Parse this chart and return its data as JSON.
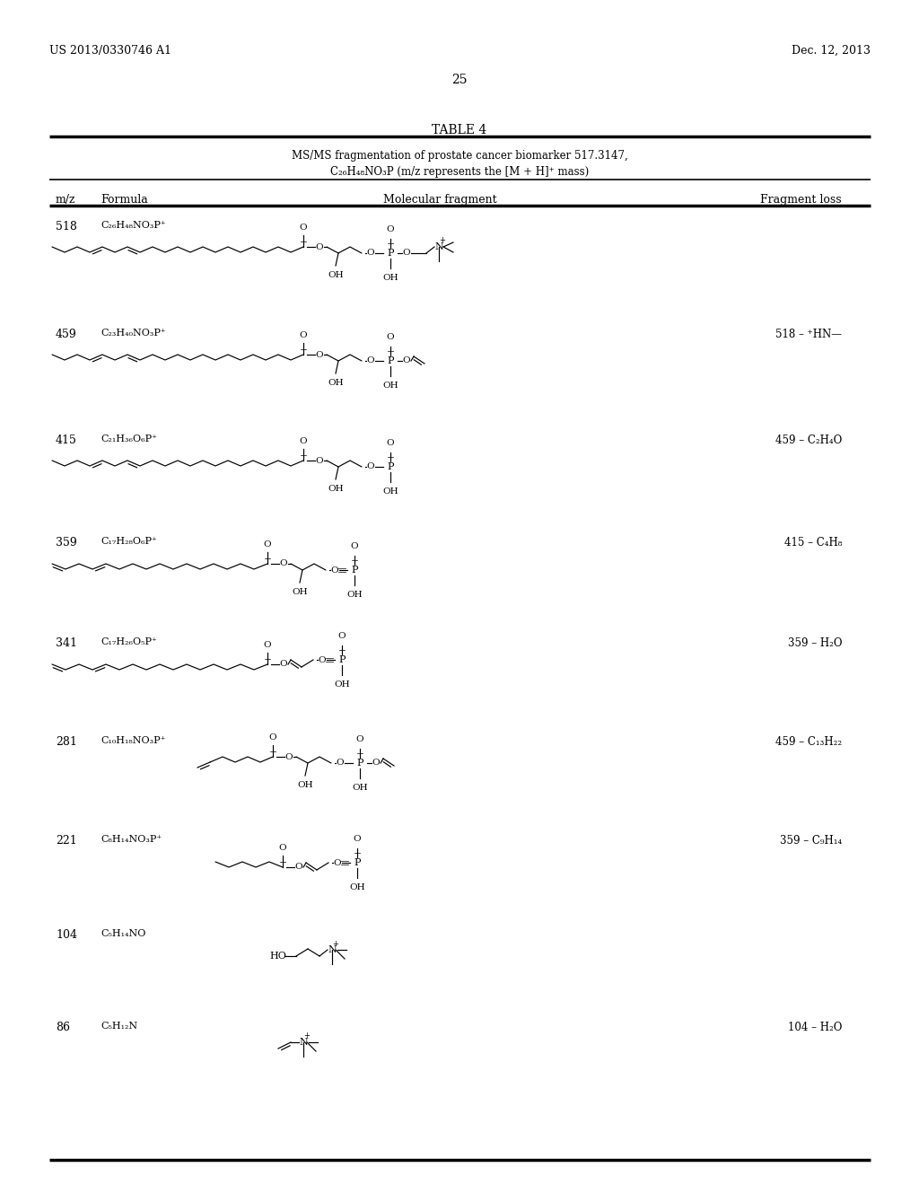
{
  "background_color": "#ffffff",
  "header_left": "US 2013/0330746 A1",
  "header_right": "Dec. 12, 2013",
  "page_number": "25",
  "table_title": "TABLE 4",
  "subtitle1": "MS/MS fragmentation of prostate cancer biomarker 517.3147,",
  "subtitle2": "C₂₆H₄₈NO₃P (m/z represents the [M + H]⁺ mass)",
  "col1": "m/z",
  "col2": "Formula",
  "col3": "Molecular fragment",
  "col4": "Fragment loss",
  "rows": [
    {
      "mz": "518",
      "formula": "C₂₆H₄₈NO₃P⁺",
      "fl": ""
    },
    {
      "mz": "459",
      "formula": "C₂₃H₄₀NO₃P⁺",
      "fl": "518 – ⁺HN—"
    },
    {
      "mz": "415",
      "formula": "C₂₁H₃₆O₆P⁺",
      "fl": "459 – C₂H₄O"
    },
    {
      "mz": "359",
      "formula": "C₁₇H₂₈O₆P⁺",
      "fl": "415 – C₄H₈"
    },
    {
      "mz": "341",
      "formula": "C₁₇H₂₆O₅P⁺",
      "fl": "359 – H₂O"
    },
    {
      "mz": "281",
      "formula": "C₁₀H₁₈NO₃P⁺",
      "fl": "459 – C₁₃H₂₂"
    },
    {
      "mz": "221",
      "formula": "C₈H₁₄NO₃P⁺",
      "fl": "359 – C₉H₁₄"
    },
    {
      "mz": "104",
      "formula": "C₅H₁₄NO",
      "fl": ""
    },
    {
      "mz": "86",
      "formula": "C₅H₁₂N",
      "fl": "104 – H₂O"
    }
  ]
}
